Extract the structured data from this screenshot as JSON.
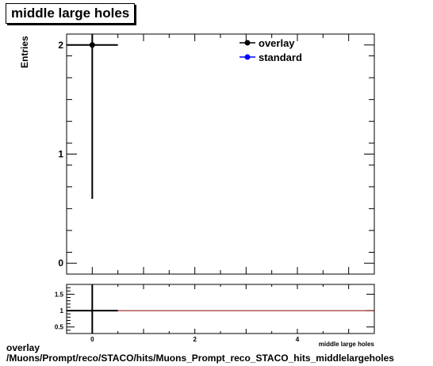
{
  "chart_data": [
    {
      "type": "scatter",
      "title": "middle large holes",
      "ylabel": "Entries",
      "xlim": [
        -0.5,
        5.5
      ],
      "ylim": [
        -0.1,
        2.1
      ],
      "y_ticks": [
        0,
        1,
        2
      ],
      "x_ticks": [],
      "grid": false,
      "legend_position": "top-right",
      "series": [
        {
          "name": "overlay",
          "color": "#000000",
          "points": [
            {
              "x": 0,
              "y": 2,
              "x_err": 0.5,
              "y_low": 0.59,
              "y_high": 2.1
            }
          ]
        },
        {
          "name": "standard",
          "color": "#0000ff",
          "points": []
        }
      ]
    },
    {
      "type": "line",
      "title": "",
      "xlabel": "middle large holes",
      "xlim": [
        -0.5,
        5.5
      ],
      "ylim": [
        0.3,
        1.8
      ],
      "y_ticks": [
        0.5,
        1,
        1.5
      ],
      "y_tick_labels": [
        "0.5",
        "1",
        "1.5"
      ],
      "x_ticks": [
        0,
        2,
        4
      ],
      "reference_line": {
        "y": 1,
        "color": "#8b0000"
      },
      "series": [
        {
          "name": "",
          "color": "#000000",
          "points": [
            {
              "x": 0,
              "y": 1,
              "x_err": 0.5
            }
          ]
        }
      ]
    }
  ],
  "footer": {
    "line1": "overlay",
    "line2": "/Muons/Prompt/reco/STACO/hits/Muons_Prompt_reco_STACO_hits_middlelargeholes"
  }
}
